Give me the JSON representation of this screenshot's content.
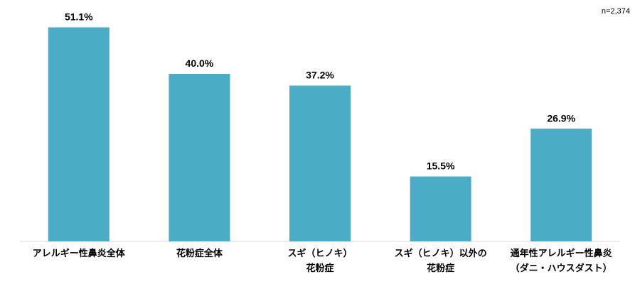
{
  "chart_data": {
    "type": "bar",
    "annotation": "n=2,374",
    "categories": [
      "アレルギー性鼻炎全体",
      "花粉症全体",
      "スギ（ヒノキ）\n花粉症",
      "スギ（ヒノキ）以外の\n花粉症",
      "通年性アレルギー性鼻炎\n（ダニ・ハウスダスト）"
    ],
    "values": [
      51.1,
      40.0,
      37.2,
      15.5,
      26.9
    ],
    "value_labels": [
      "51.1%",
      "40.0%",
      "37.2%",
      "15.5%",
      "26.9%"
    ],
    "color": "#4bacc6"
  }
}
